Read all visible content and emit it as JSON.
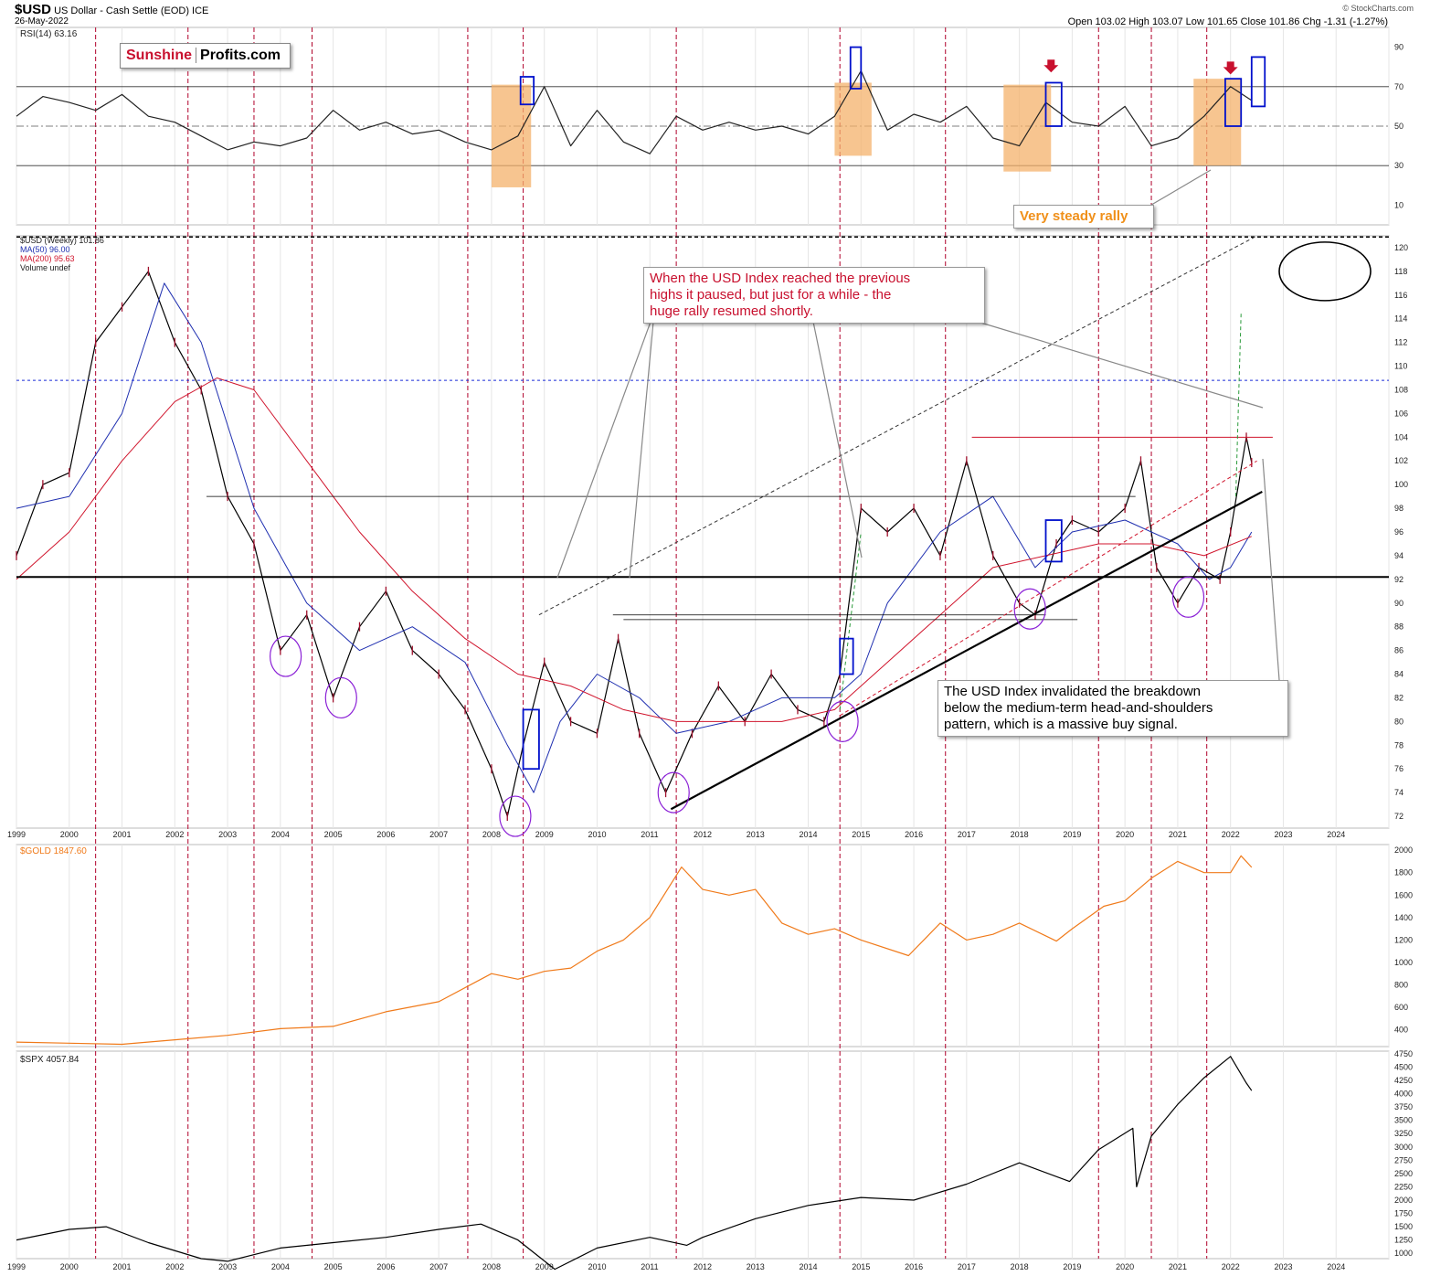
{
  "header": {
    "symbol": "$USD",
    "description": "US Dollar - Cash Settle (EOD) ICE",
    "date": "26-May-2022",
    "ohlc": "Open 103.02  High 103.07  Low 101.65  Close 101.86  Chg -1.31 (-1.27%)",
    "watermark": "© StockCharts.com"
  },
  "logo": {
    "part1": "Sunshine",
    "part2": "Profits.com"
  },
  "colors": {
    "usd_bars": "#000000",
    "ma50": "#1f2fb0",
    "ma200": "#d0142c",
    "gold": "#f07a1a",
    "spx": "#000000",
    "rsi_band": "#f4b26b",
    "year_lines": "#b0002a",
    "highlight_box": "#0010cc",
    "circle": "#8a1fd6",
    "annotation_red": "#c8102e",
    "annotation_orange": "#f0901a"
  },
  "annotations": {
    "rally": "Very steady rally",
    "previous_highs": "When the USD Index reached the previous\nhighs it paused, but just for a while - the\nhuge rally resumed shortly.",
    "invalidation": "The USD Index invalidated the breakdown\nbelow the medium-term head-and-shoulders\npattern, which is a massive buy signal."
  },
  "chart_data": [
    {
      "type": "line",
      "panel": "rsi",
      "legend": "RSI(14) 63.16",
      "ylim": [
        0,
        100
      ],
      "tick_labels": [
        "10",
        "30",
        "50",
        "70",
        "90"
      ],
      "series": [
        {
          "name": "RSI(14)",
          "x": [
            1999.0,
            1999.5,
            2000.0,
            2000.5,
            2001.0,
            2001.5,
            2002.0,
            2002.5,
            2003.0,
            2003.5,
            2004.0,
            2004.5,
            2005.0,
            2005.5,
            2006.0,
            2006.5,
            2007.0,
            2007.5,
            2008.0,
            2008.5,
            2009.0,
            2009.5,
            2010.0,
            2010.5,
            2011.0,
            2011.5,
            2012.0,
            2012.5,
            2013.0,
            2013.5,
            2014.0,
            2014.5,
            2015.0,
            2015.5,
            2016.0,
            2016.5,
            2017.0,
            2017.5,
            2018.0,
            2018.5,
            2019.0,
            2019.5,
            2020.0,
            2020.5,
            2021.0,
            2021.5,
            2022.0,
            2022.4
          ],
          "values": [
            55,
            65,
            62,
            58,
            66,
            55,
            52,
            45,
            38,
            42,
            40,
            44,
            58,
            48,
            52,
            46,
            48,
            42,
            38,
            45,
            70,
            40,
            58,
            42,
            36,
            55,
            48,
            52,
            48,
            50,
            46,
            55,
            78,
            48,
            56,
            52,
            60,
            44,
            40,
            62,
            52,
            50,
            60,
            40,
            44,
            55,
            70,
            63
          ]
        }
      ]
    },
    {
      "type": "line",
      "panel": "usd",
      "legend": [
        "$USD (Weekly) 101.86",
        "MA(50) 96.00",
        "MA(200) 95.63",
        "Volume undef"
      ],
      "ylim": [
        71,
        121
      ],
      "tick_labels": [
        "72",
        "74",
        "76",
        "78",
        "80",
        "82",
        "84",
        "86",
        "88",
        "90",
        "92",
        "94",
        "96",
        "98",
        "100",
        "102",
        "104",
        "106",
        "108",
        "110",
        "112",
        "114",
        "116",
        "118",
        "120"
      ],
      "x_tick_labels": [
        "1999",
        "2000",
        "2001",
        "2002",
        "2003",
        "2004",
        "2005",
        "2006",
        "2007",
        "2008",
        "2009",
        "2010",
        "2011",
        "2012",
        "2013",
        "2014",
        "2015",
        "2016",
        "2017",
        "2018",
        "2019",
        "2020",
        "2021",
        "2022",
        "2023",
        "2024"
      ],
      "series": [
        {
          "name": "$USD (Weekly)",
          "x": [
            1999.0,
            1999.5,
            2000.0,
            2000.5,
            2001.0,
            2001.5,
            2002.0,
            2002.5,
            2003.0,
            2003.5,
            2004.0,
            2004.5,
            2005.0,
            2005.5,
            2006.0,
            2006.5,
            2007.0,
            2007.5,
            2008.0,
            2008.3,
            2008.6,
            2009.0,
            2009.5,
            2010.0,
            2010.4,
            2010.8,
            2011.3,
            2011.8,
            2012.3,
            2012.8,
            2013.3,
            2013.8,
            2014.3,
            2014.6,
            2015.0,
            2015.5,
            2016.0,
            2016.5,
            2017.0,
            2017.5,
            2018.0,
            2018.3,
            2018.7,
            2019.0,
            2019.5,
            2020.0,
            2020.3,
            2020.6,
            2021.0,
            2021.4,
            2021.8,
            2022.0,
            2022.3,
            2022.4
          ],
          "values": [
            94,
            100,
            101,
            112,
            115,
            118,
            112,
            108,
            99,
            95,
            86,
            89,
            82,
            88,
            91,
            86,
            84,
            81,
            76,
            72,
            78,
            85,
            80,
            79,
            87,
            79,
            74,
            79,
            83,
            80,
            84,
            81,
            80,
            84,
            98,
            96,
            98,
            94,
            102,
            94,
            90,
            89,
            95,
            97,
            96,
            98,
            102,
            93,
            90,
            93,
            92,
            96,
            104,
            101.86
          ]
        },
        {
          "name": "MA(50)",
          "x": [
            1999.0,
            2000.0,
            2001.0,
            2001.8,
            2002.5,
            2003.5,
            2004.5,
            2005.5,
            2006.5,
            2007.5,
            2008.3,
            2008.8,
            2009.3,
            2010.0,
            2010.8,
            2011.5,
            2012.5,
            2013.5,
            2014.5,
            2015.0,
            2015.5,
            2016.5,
            2017.5,
            2018.3,
            2019.0,
            2020.0,
            2021.0,
            2021.6,
            2022.0,
            2022.4
          ],
          "values": [
            98,
            99,
            106,
            117,
            112,
            98,
            90,
            86,
            88,
            85,
            78,
            74,
            80,
            84,
            82,
            79,
            80,
            82,
            82,
            84,
            90,
            96,
            99,
            93,
            96,
            97,
            95,
            92,
            93,
            96
          ]
        },
        {
          "name": "MA(200)",
          "x": [
            1999.0,
            2000.0,
            2001.0,
            2002.0,
            2002.8,
            2003.5,
            2004.5,
            2005.5,
            2006.5,
            2007.5,
            2008.5,
            2009.5,
            2010.5,
            2011.5,
            2012.5,
            2013.5,
            2014.5,
            2015.5,
            2016.5,
            2017.5,
            2018.5,
            2019.5,
            2020.5,
            2021.5,
            2022.4
          ],
          "values": [
            92,
            96,
            102,
            107,
            109,
            108,
            102,
            96,
            91,
            87,
            84,
            83,
            81,
            80,
            80,
            80,
            81,
            85,
            89,
            93,
            94,
            95,
            95,
            94,
            95.63
          ]
        }
      ]
    },
    {
      "type": "line",
      "panel": "gold",
      "legend": "$GOLD 1847.60",
      "ylim": [
        250,
        2050
      ],
      "tick_labels": [
        "400",
        "600",
        "800",
        "1000",
        "1200",
        "1400",
        "1600",
        "1800",
        "2000"
      ],
      "series": [
        {
          "name": "$GOLD",
          "x": [
            1999.0,
            2000.0,
            2001.0,
            2002.0,
            2003.0,
            2004.0,
            2005.0,
            2006.0,
            2007.0,
            2008.0,
            2008.5,
            2009.0,
            2009.5,
            2010.0,
            2010.5,
            2011.0,
            2011.6,
            2012.0,
            2012.5,
            2013.0,
            2013.5,
            2014.0,
            2014.5,
            2015.0,
            2015.9,
            2016.5,
            2017.0,
            2017.5,
            2018.0,
            2018.7,
            2019.0,
            2019.6,
            2020.0,
            2020.5,
            2021.0,
            2021.5,
            2022.0,
            2022.2,
            2022.4
          ],
          "values": [
            290,
            280,
            270,
            310,
            350,
            410,
            430,
            560,
            650,
            900,
            850,
            920,
            950,
            1100,
            1200,
            1400,
            1850,
            1650,
            1600,
            1650,
            1350,
            1250,
            1300,
            1200,
            1060,
            1350,
            1200,
            1250,
            1350,
            1190,
            1300,
            1500,
            1550,
            1750,
            1900,
            1800,
            1800,
            1950,
            1847.6
          ]
        }
      ]
    },
    {
      "type": "line",
      "panel": "spx",
      "legend": "$SPX 4057.84",
      "ylim": [
        900,
        4800
      ],
      "tick_labels": [
        "1000",
        "1250",
        "1500",
        "1750",
        "2000",
        "2250",
        "2500",
        "2750",
        "3000",
        "3250",
        "3500",
        "3750",
        "4000",
        "4250",
        "4500",
        "4750"
      ],
      "series": [
        {
          "name": "$SPX",
          "x": [
            1999.0,
            2000.0,
            2000.7,
            2001.5,
            2002.5,
            2003.0,
            2004.0,
            2005.0,
            2006.0,
            2007.0,
            2007.8,
            2008.5,
            2009.2,
            2010.0,
            2011.0,
            2011.7,
            2012.0,
            2013.0,
            2014.0,
            2015.0,
            2016.0,
            2017.0,
            2018.0,
            2018.95,
            2019.5,
            2020.15,
            2020.22,
            2020.5,
            2021.0,
            2021.5,
            2022.0,
            2022.3,
            2022.4
          ],
          "values": [
            1250,
            1450,
            1500,
            1200,
            900,
            850,
            1100,
            1200,
            1300,
            1450,
            1550,
            1250,
            700,
            1100,
            1300,
            1150,
            1300,
            1650,
            1900,
            2050,
            2000,
            2300,
            2700,
            2350,
            2950,
            3350,
            2250,
            3200,
            3800,
            4300,
            4700,
            4200,
            4057.84
          ]
        }
      ]
    }
  ]
}
